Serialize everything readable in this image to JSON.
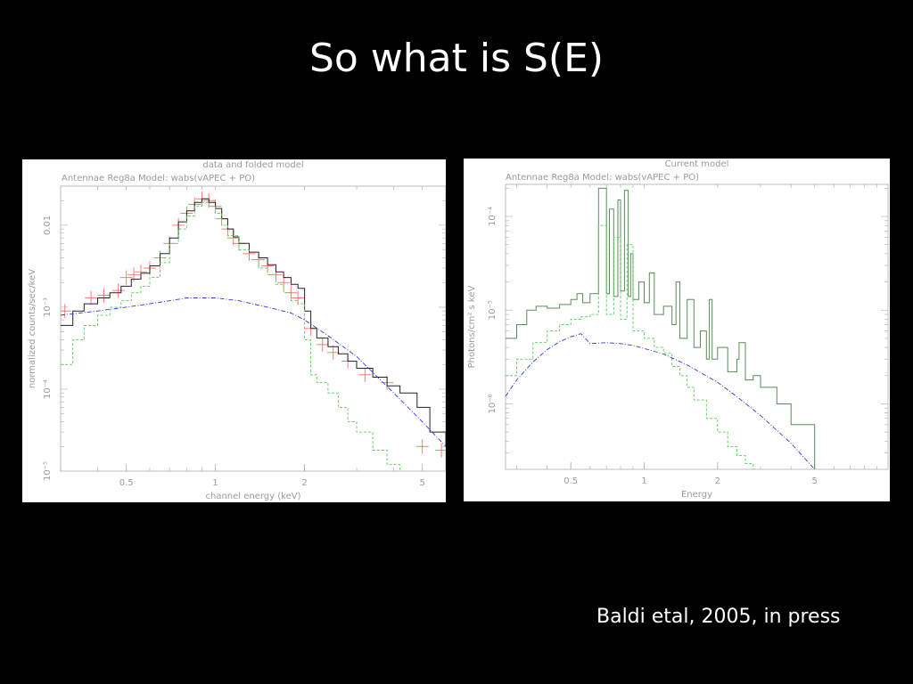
{
  "slide": {
    "title": "So what is S(E)",
    "caption": "Baldi etal, 2005, in press"
  },
  "colors": {
    "background": "#000000",
    "data": "#ff6b6b",
    "total_model": "#222222",
    "vapec_component": "#55cc55",
    "powerlaw_component": "#3333dd",
    "axis_text": "#9a9a9a"
  },
  "chart_data": [
    {
      "type": "line",
      "title": "data and folded model",
      "subtitle": "Antennae Reg8a Model: wabs(vAPEC + PO)",
      "xlabel": "channel energy (keV)",
      "ylabel": "normalized counts/sec/keV",
      "xscale": "log",
      "yscale": "log",
      "xlim": [
        0.3,
        6.0
      ],
      "ylim": [
        1e-05,
        0.03
      ],
      "xticks": [
        {
          "v": 0.5,
          "label": "0.5"
        },
        {
          "v": 1,
          "label": "1"
        },
        {
          "v": 2,
          "label": "2"
        },
        {
          "v": 5,
          "label": "5"
        }
      ],
      "yticks": [
        {
          "v": 1e-05,
          "label": "10⁻⁵"
        },
        {
          "v": 0.0001,
          "label": "10⁻⁴"
        },
        {
          "v": 0.001,
          "label": "10⁻³"
        },
        {
          "v": 0.01,
          "label": "0.01"
        }
      ],
      "series": [
        {
          "role": "data",
          "x": [
            0.31,
            0.38,
            0.42,
            0.47,
            0.5,
            0.53,
            0.56,
            0.6,
            0.65,
            0.7,
            0.75,
            0.8,
            0.85,
            0.9,
            0.95,
            1.0,
            1.05,
            1.1,
            1.15,
            1.2,
            1.3,
            1.4,
            1.5,
            1.6,
            1.7,
            1.8,
            1.9,
            2.1,
            2.3,
            2.5,
            2.8,
            3.2,
            3.8,
            5.0,
            5.8
          ],
          "y": [
            0.0009,
            0.0013,
            0.0014,
            0.0016,
            0.0023,
            0.0025,
            0.0027,
            0.003,
            0.004,
            0.006,
            0.01,
            0.014,
            0.018,
            0.021,
            0.02,
            0.017,
            0.012,
            0.009,
            0.007,
            0.006,
            0.0045,
            0.0038,
            0.0032,
            0.0025,
            0.002,
            0.0015,
            0.0013,
            0.00055,
            0.00035,
            0.00028,
            0.00022,
            0.00015,
            0.00012,
            2e-05,
            1.8e-05
          ]
        },
        {
          "role": "total_model",
          "x": [
            0.3,
            0.33,
            0.36,
            0.4,
            0.44,
            0.48,
            0.52,
            0.56,
            0.6,
            0.65,
            0.7,
            0.75,
            0.8,
            0.85,
            0.9,
            0.95,
            1.0,
            1.05,
            1.1,
            1.15,
            1.2,
            1.3,
            1.4,
            1.5,
            1.6,
            1.7,
            1.8,
            1.9,
            2.0,
            2.1,
            2.2,
            2.4,
            2.6,
            2.8,
            3.0,
            3.4,
            3.8,
            4.2,
            4.8,
            5.3,
            6.0
          ],
          "y": [
            0.0006,
            0.0009,
            0.0011,
            0.0013,
            0.0015,
            0.0018,
            0.0022,
            0.0026,
            0.0032,
            0.0045,
            0.007,
            0.011,
            0.015,
            0.019,
            0.021,
            0.019,
            0.016,
            0.012,
            0.009,
            0.0072,
            0.006,
            0.0047,
            0.004,
            0.0033,
            0.0027,
            0.0023,
            0.0019,
            0.0017,
            0.0009,
            0.00055,
            0.00042,
            0.00033,
            0.00027,
            0.00022,
            0.00018,
            0.00014,
            0.00011,
            9e-05,
            6e-05,
            3e-05,
            2e-05
          ]
        },
        {
          "role": "vapec_component",
          "x": [
            0.3,
            0.33,
            0.36,
            0.4,
            0.44,
            0.48,
            0.52,
            0.56,
            0.6,
            0.65,
            0.7,
            0.75,
            0.8,
            0.85,
            0.9,
            0.95,
            1.0,
            1.05,
            1.1,
            1.2,
            1.3,
            1.4,
            1.5,
            1.6,
            1.7,
            1.8,
            1.9,
            2.0,
            2.1,
            2.2,
            2.4,
            2.6,
            2.8,
            3.0,
            3.4,
            3.8,
            4.2
          ],
          "y": [
            0.0002,
            0.0004,
            0.0006,
            0.0008,
            0.001,
            0.0012,
            0.0015,
            0.0018,
            0.0023,
            0.0035,
            0.006,
            0.009,
            0.013,
            0.017,
            0.019,
            0.017,
            0.014,
            0.01,
            0.0075,
            0.005,
            0.0038,
            0.003,
            0.0025,
            0.0019,
            0.0015,
            0.0012,
            0.0011,
            0.0004,
            0.00015,
            0.00012,
            9e-05,
            6e-05,
            4e-05,
            3e-05,
            1.8e-05,
            1.2e-05,
            1e-05
          ]
        },
        {
          "role": "powerlaw_component",
          "x": [
            0.3,
            0.4,
            0.5,
            0.6,
            0.7,
            0.8,
            0.9,
            1.0,
            1.2,
            1.5,
            1.8,
            2.0,
            2.4,
            3.0,
            4.0,
            5.0,
            6.0
          ],
          "y": [
            0.0008,
            0.0009,
            0.001,
            0.0011,
            0.0012,
            0.0013,
            0.0013,
            0.0013,
            0.0012,
            0.001,
            0.00085,
            0.0007,
            0.00045,
            0.00025,
            9e-05,
            4e-05,
            2e-05
          ]
        }
      ]
    },
    {
      "type": "line",
      "title": "Current model",
      "subtitle": "Antennae Reg8a Model: wabs(vAPEC + PO)",
      "xlabel": "Energy",
      "ylabel": "Photons/cm² s keV",
      "xscale": "log",
      "yscale": "log",
      "xlim": [
        0.27,
        10.0
      ],
      "ylim": [
        2e-07,
        0.00022
      ],
      "xticks": [
        {
          "v": 0.5,
          "label": "0.5"
        },
        {
          "v": 1,
          "label": "1"
        },
        {
          "v": 2,
          "label": "2"
        },
        {
          "v": 5,
          "label": "5"
        }
      ],
      "yticks": [
        {
          "v": 1e-06,
          "label": "10⁻⁶"
        },
        {
          "v": 1e-05,
          "label": "10⁻⁵"
        },
        {
          "v": 0.0001,
          "label": "10⁻⁴"
        }
      ],
      "series": [
        {
          "role": "total_model",
          "x": [
            0.27,
            0.3,
            0.33,
            0.36,
            0.4,
            0.45,
            0.5,
            0.53,
            0.56,
            0.6,
            0.65,
            0.7,
            0.72,
            0.75,
            0.78,
            0.8,
            0.83,
            0.86,
            0.88,
            0.9,
            0.95,
            1.0,
            1.05,
            1.1,
            1.2,
            1.3,
            1.35,
            1.4,
            1.5,
            1.6,
            1.7,
            1.8,
            1.85,
            1.9,
            2.0,
            2.2,
            2.4,
            2.45,
            2.6,
            2.8,
            3.0,
            3.5,
            4.0,
            5.0
          ],
          "y": [
            5e-06,
            7e-06,
            1e-05,
            1.1e-05,
            1.05e-05,
            1.15e-05,
            1.3e-05,
            1.5e-05,
            1.2e-05,
            1.5e-05,
            0.0002,
            1.5e-05,
            0.00012,
            1.4e-05,
            0.00015,
            1.6e-05,
            0.00019,
            1.4e-05,
            4e-05,
            1.3e-05,
            2e-05,
            1.2e-05,
            2.5e-05,
            9e-06,
            1.1e-05,
            7e-06,
            2e-05,
            5e-06,
            1.3e-05,
            4e-06,
            6e-06,
            3e-06,
            1.3e-05,
            3e-06,
            4e-06,
            2.2e-06,
            3e-06,
            4.5e-06,
            1.8e-06,
            2e-06,
            1.5e-06,
            1e-06,
            6e-07,
            2e-07
          ]
        },
        {
          "role": "vapec_component",
          "x": [
            0.27,
            0.3,
            0.35,
            0.4,
            0.45,
            0.5,
            0.55,
            0.6,
            0.65,
            0.7,
            0.75,
            0.8,
            0.85,
            0.9,
            1.0,
            1.1,
            1.2,
            1.3,
            1.4,
            1.5,
            1.6,
            1.8,
            2.0,
            2.2,
            2.4,
            2.6,
            2.8
          ],
          "y": [
            2e-06,
            3e-06,
            4.5e-06,
            6e-06,
            7e-06,
            8e-06,
            8.5e-06,
            9e-06,
            8e-05,
            9e-06,
            6e-05,
            8e-06,
            5e-05,
            6e-06,
            5e-06,
            4e-06,
            3.5e-06,
            2.5e-06,
            2e-06,
            1.5e-06,
            1.1e-06,
            7e-07,
            5e-07,
            3.5e-07,
            2.8e-07,
            2.3e-07,
            2e-07
          ]
        },
        {
          "role": "powerlaw_component",
          "x": [
            0.27,
            0.3,
            0.35,
            0.4,
            0.45,
            0.5,
            0.55,
            0.6,
            0.7,
            0.8,
            0.9,
            1.0,
            1.2,
            1.5,
            2.0,
            2.5,
            3.0,
            4.0,
            5.0
          ],
          "y": [
            1.2e-06,
            1.8e-06,
            2.8e-06,
            3.8e-06,
            4.6e-06,
            5.2e-06,
            5.6e-06,
            4.4e-06,
            4.5e-06,
            4.4e-06,
            4.2e-06,
            3.9e-06,
            3.4e-06,
            2.6e-06,
            1.7e-06,
            1.1e-06,
            7.5e-07,
            3.8e-07,
            2e-07
          ]
        }
      ]
    }
  ]
}
